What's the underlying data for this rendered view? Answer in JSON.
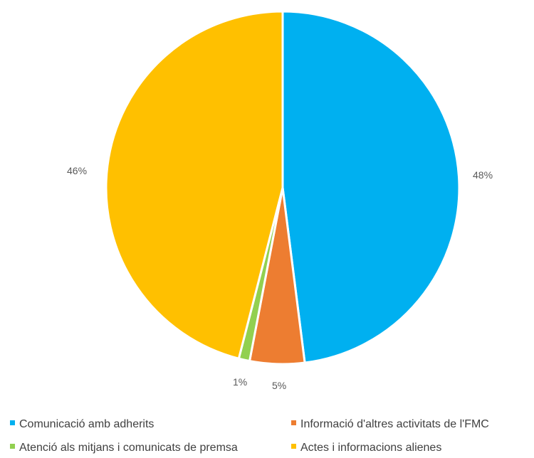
{
  "chart_data": {
    "type": "pie",
    "title": "",
    "slices": [
      {
        "label": "Comunicació amb adherits",
        "value": 48,
        "display": "48%",
        "color": "#00b0f0"
      },
      {
        "label": "Informació d'altres activitats de l'FMC",
        "value": 5,
        "display": "5%",
        "color": "#ed7d31"
      },
      {
        "label": "Atenció als mitjans i comunicats de premsa",
        "value": 1,
        "display": "1%",
        "color": "#92d050"
      },
      {
        "label": "Actes i informacions alienes",
        "value": 46,
        "display": "46%",
        "color": "#ffc000"
      }
    ],
    "legend_position": "bottom"
  }
}
